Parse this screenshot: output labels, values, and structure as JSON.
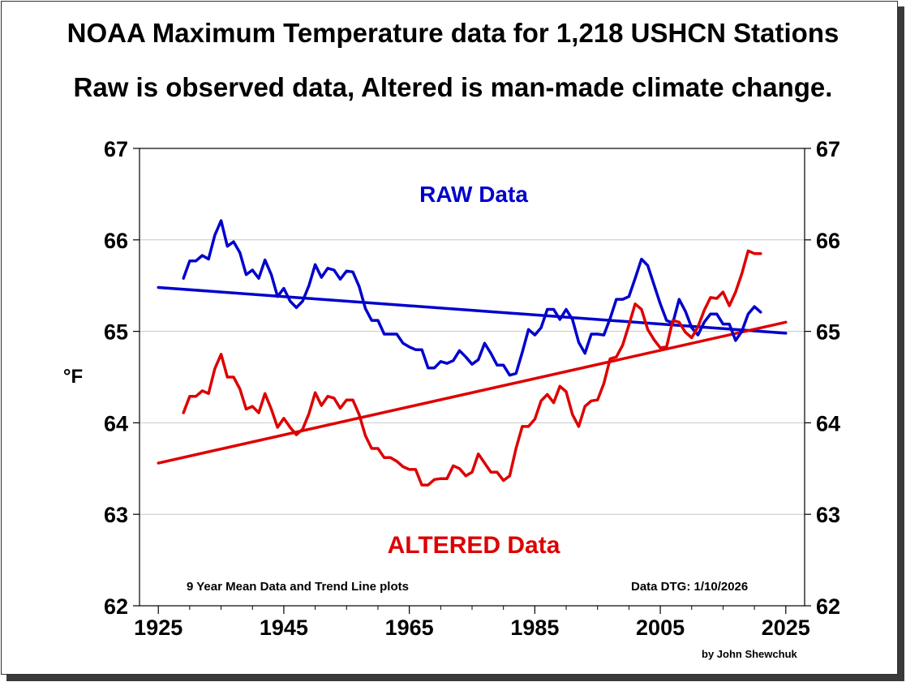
{
  "title": "NOAA Maximum Temperature data for 1,218 USHCN Stations",
  "subtitle": "Raw is observed data, Altered is man-made climate change.",
  "chart_data": {
    "type": "line",
    "xlim": [
      1922,
      2028
    ],
    "ylim": [
      62,
      67
    ],
    "xticks": [
      1925,
      1945,
      1965,
      1985,
      2005,
      2025
    ],
    "yticks": [
      62,
      63,
      64,
      65,
      66,
      67
    ],
    "ylabel": "°F",
    "grid": true,
    "series": [
      {
        "name": "RAW Data",
        "label": "RAW Data",
        "color": "#0000cc",
        "x": [
          1929,
          1930,
          1931,
          1932,
          1933,
          1934,
          1935,
          1936,
          1937,
          1938,
          1939,
          1940,
          1941,
          1942,
          1943,
          1944,
          1945,
          1946,
          1947,
          1948,
          1949,
          1950,
          1951,
          1952,
          1953,
          1954,
          1955,
          1956,
          1957,
          1958,
          1959,
          1960,
          1961,
          1962,
          1963,
          1964,
          1965,
          1966,
          1967,
          1968,
          1969,
          1970,
          1971,
          1972,
          1973,
          1974,
          1975,
          1976,
          1977,
          1978,
          1979,
          1980,
          1981,
          1982,
          1983,
          1984,
          1985,
          1986,
          1987,
          1988,
          1989,
          1990,
          1991,
          1992,
          1993,
          1994,
          1995,
          1996,
          1997,
          1998,
          1999,
          2000,
          2001,
          2002,
          2003,
          2004,
          2005,
          2006,
          2007,
          2008,
          2009,
          2010,
          2011,
          2012,
          2013,
          2014,
          2015,
          2016,
          2017,
          2018,
          2019,
          2020,
          2021
        ],
        "values": [
          65.58,
          65.77,
          65.77,
          65.83,
          65.79,
          66.05,
          66.21,
          65.93,
          65.98,
          65.86,
          65.62,
          65.67,
          65.58,
          65.78,
          65.62,
          65.38,
          65.47,
          65.33,
          65.26,
          65.33,
          65.5,
          65.73,
          65.59,
          65.69,
          65.67,
          65.57,
          65.66,
          65.65,
          65.49,
          65.25,
          65.12,
          65.12,
          64.97,
          64.97,
          64.97,
          64.87,
          64.83,
          64.8,
          64.8,
          64.6,
          64.6,
          64.67,
          64.65,
          64.68,
          64.79,
          64.72,
          64.64,
          64.69,
          64.87,
          64.76,
          64.63,
          64.63,
          64.52,
          64.54,
          64.77,
          65.02,
          64.96,
          65.04,
          65.24,
          65.24,
          65.13,
          65.24,
          65.13,
          64.88,
          64.76,
          64.97,
          64.97,
          64.96,
          65.14,
          65.35,
          65.35,
          65.38,
          65.58,
          65.79,
          65.72,
          65.51,
          65.3,
          65.12,
          65.09,
          65.35,
          65.22,
          65.04,
          64.96,
          65.1,
          65.19,
          65.19,
          65.08,
          65.08,
          64.9,
          65.0,
          65.19,
          65.27,
          65.21
        ]
      },
      {
        "name": "ALTERED Data",
        "label": "ALTERED Data",
        "color": "#dd0000",
        "x": [
          1929,
          1930,
          1931,
          1932,
          1933,
          1934,
          1935,
          1936,
          1937,
          1938,
          1939,
          1940,
          1941,
          1942,
          1943,
          1944,
          1945,
          1946,
          1947,
          1948,
          1949,
          1950,
          1951,
          1952,
          1953,
          1954,
          1955,
          1956,
          1957,
          1958,
          1959,
          1960,
          1961,
          1962,
          1963,
          1964,
          1965,
          1966,
          1967,
          1968,
          1969,
          1970,
          1971,
          1972,
          1973,
          1974,
          1975,
          1976,
          1977,
          1978,
          1979,
          1980,
          1981,
          1982,
          1983,
          1984,
          1985,
          1986,
          1987,
          1988,
          1989,
          1990,
          1991,
          1992,
          1993,
          1994,
          1995,
          1996,
          1997,
          1998,
          1999,
          2000,
          2001,
          2002,
          2003,
          2004,
          2005,
          2006,
          2007,
          2008,
          2009,
          2010,
          2011,
          2012,
          2013,
          2014,
          2015,
          2016,
          2017,
          2018,
          2019,
          2020,
          2021
        ],
        "values": [
          64.11,
          64.29,
          64.29,
          64.35,
          64.32,
          64.59,
          64.75,
          64.5,
          64.5,
          64.37,
          64.15,
          64.18,
          64.11,
          64.32,
          64.15,
          63.95,
          64.05,
          63.95,
          63.87,
          63.93,
          64.1,
          64.33,
          64.19,
          64.29,
          64.27,
          64.16,
          64.25,
          64.25,
          64.09,
          63.86,
          63.72,
          63.72,
          63.62,
          63.62,
          63.58,
          63.52,
          63.49,
          63.49,
          63.32,
          63.32,
          63.38,
          63.39,
          63.39,
          63.53,
          63.5,
          63.42,
          63.46,
          63.66,
          63.56,
          63.46,
          63.46,
          63.37,
          63.42,
          63.72,
          63.96,
          63.96,
          64.04,
          64.24,
          64.31,
          64.22,
          64.4,
          64.34,
          64.09,
          63.96,
          64.18,
          64.24,
          64.25,
          64.43,
          64.7,
          64.72,
          64.85,
          65.07,
          65.3,
          65.24,
          65.02,
          64.91,
          64.82,
          64.83,
          65.12,
          65.1,
          64.99,
          64.93,
          65.05,
          65.23,
          65.37,
          65.36,
          65.43,
          65.28,
          65.43,
          65.63,
          65.88,
          65.85,
          65.85
        ]
      }
    ],
    "trend_lines": [
      {
        "name": "RAW trend",
        "color": "#0000cc",
        "x": [
          1925,
          2025
        ],
        "values": [
          65.48,
          64.98
        ]
      },
      {
        "name": "ALTERED trend",
        "color": "#dd0000",
        "x": [
          1925,
          2025
        ],
        "values": [
          63.56,
          65.1
        ]
      }
    ],
    "annotations": {
      "raw_label": "RAW Data",
      "altered_label": "ALTERED Data",
      "note_left": "9 Year Mean Data and Trend Line plots",
      "note_right": "Data DTG: 1/10/2026",
      "credit": "by John Shewchuk"
    }
  }
}
